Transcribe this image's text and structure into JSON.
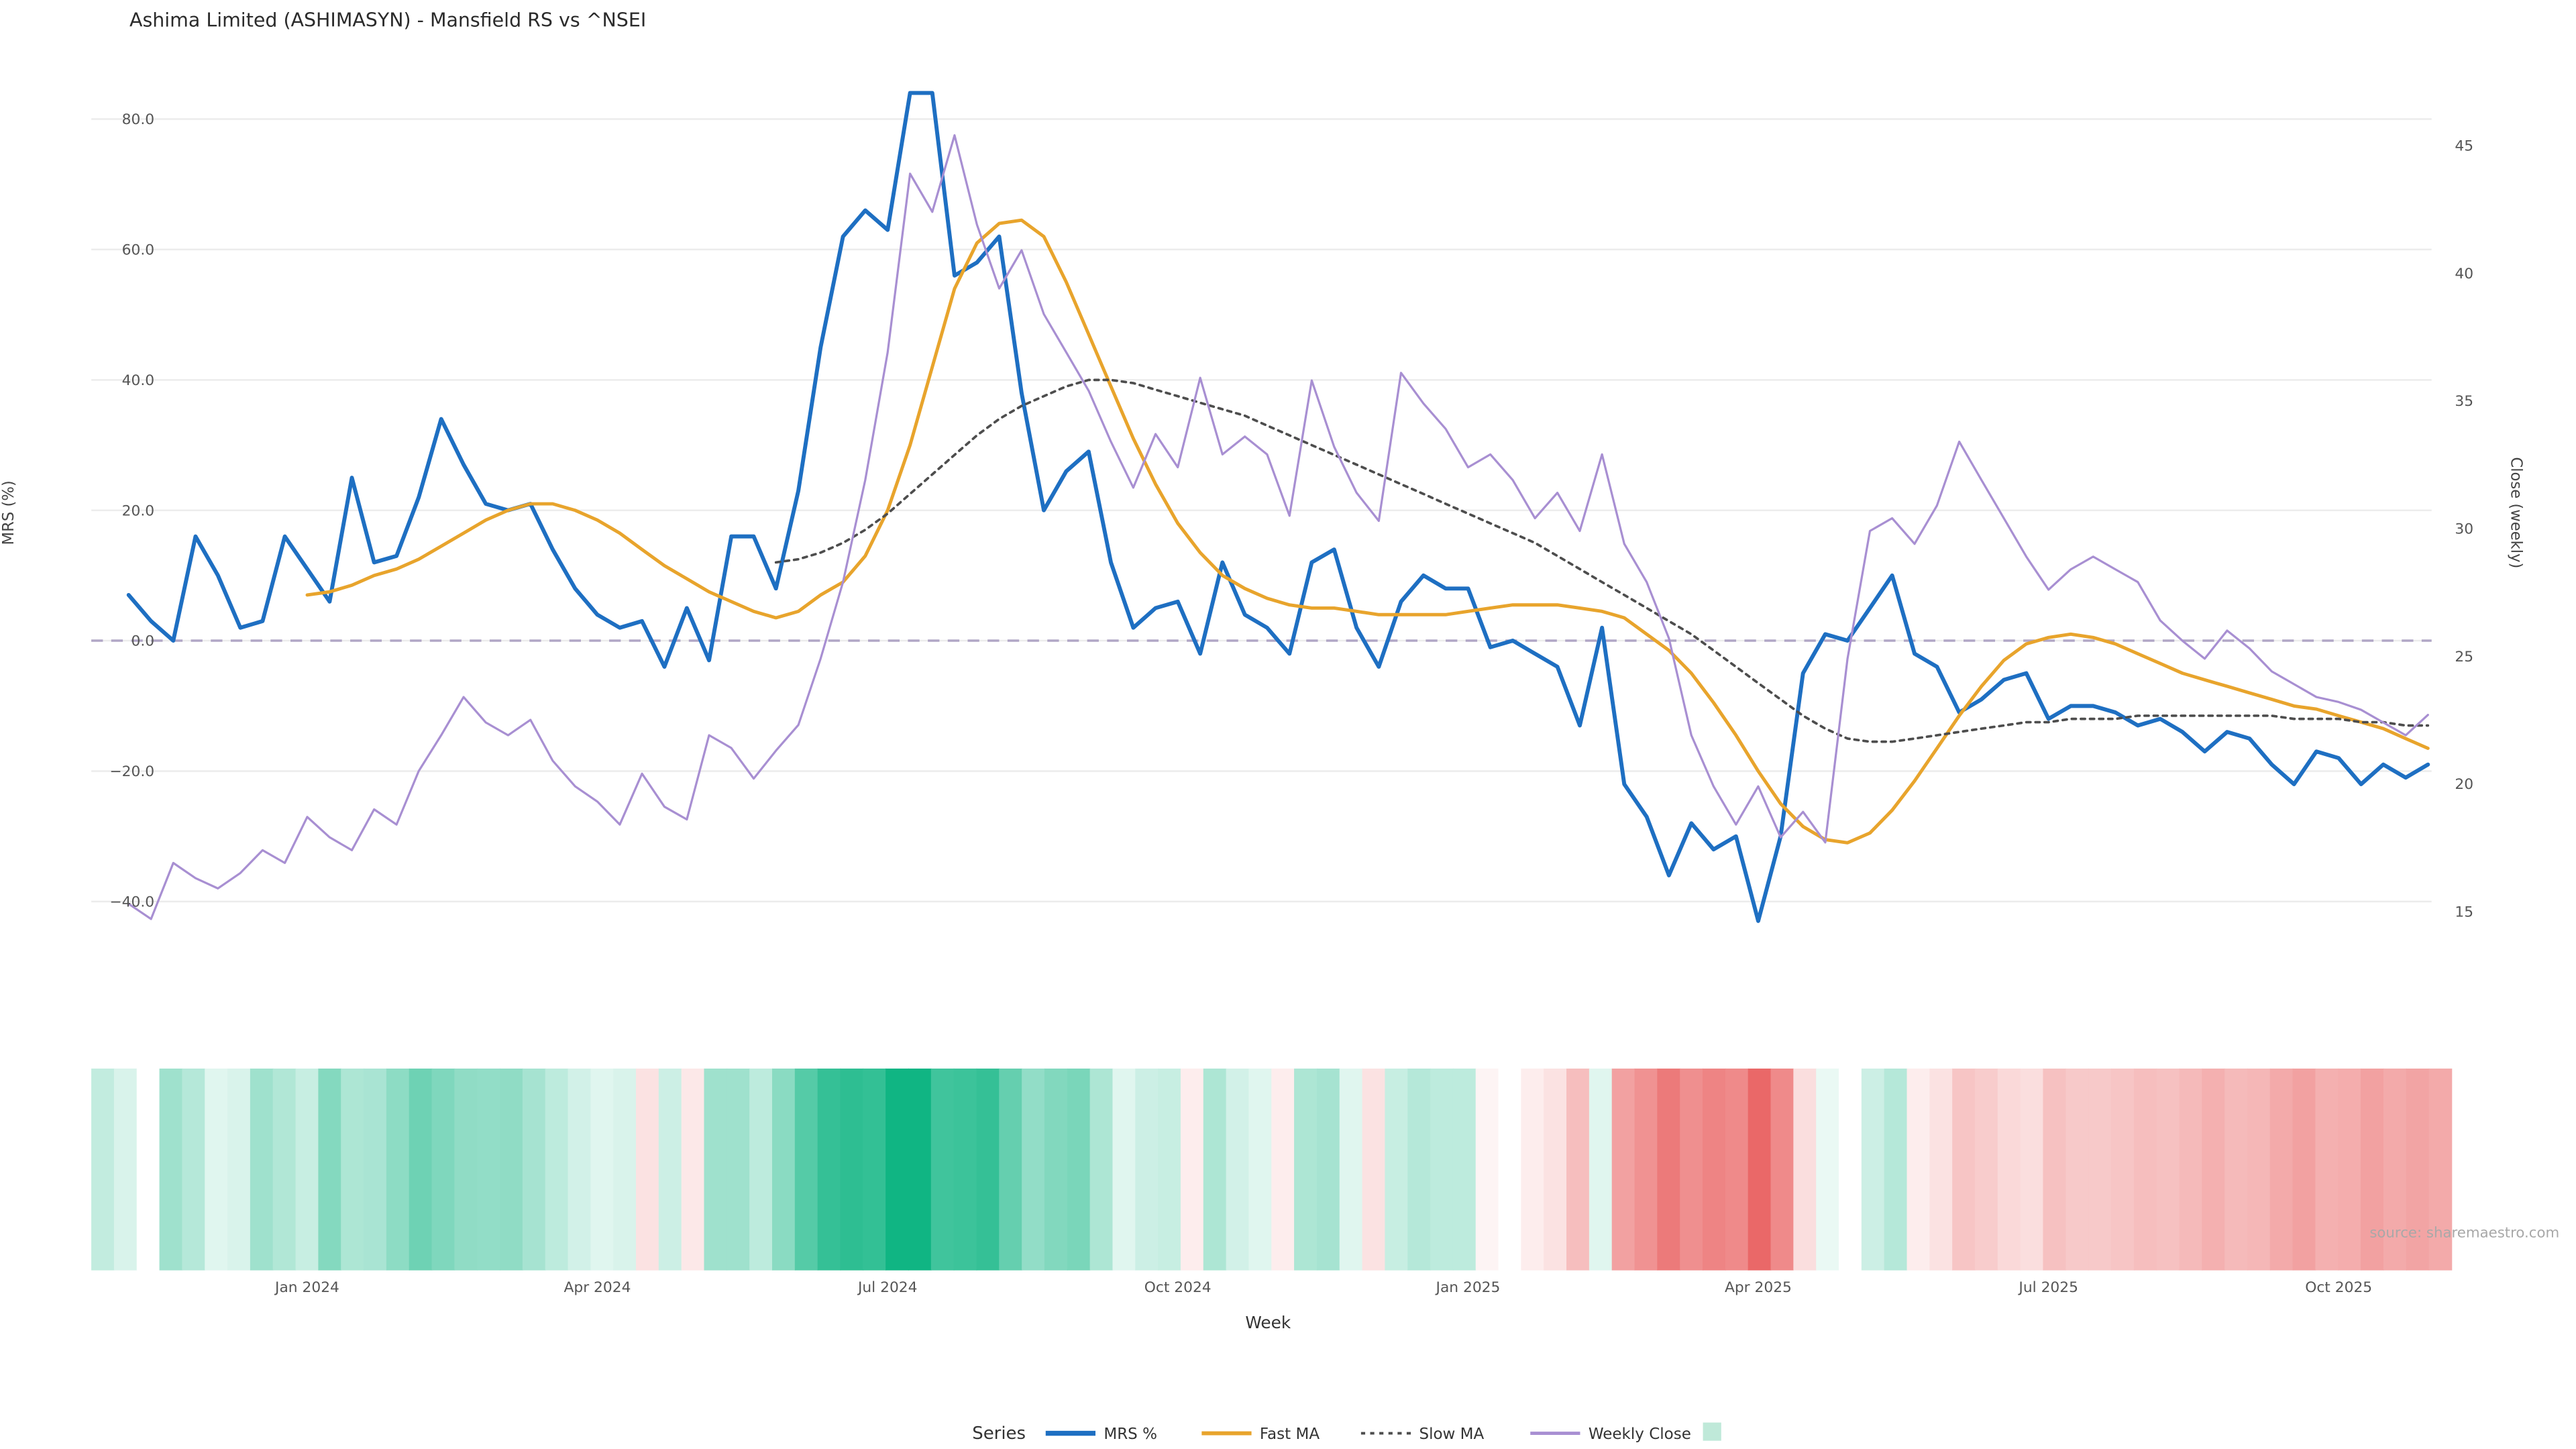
{
  "chart": {
    "title": "Ashima Limited (ASHIMASYN) - Mansfield RS vs ^NSEI",
    "xlabel": "Week",
    "ylabel_left": "MRS (%)",
    "ylabel_right": "Close (weekly)",
    "legend_title": "Series",
    "source": "source: sharemaestro.com"
  },
  "chart_data": {
    "type": "line",
    "x_axis": {
      "label": "Week",
      "n_weeks": 104,
      "tick_weeks": [
        8,
        21,
        34,
        47,
        60,
        73,
        86,
        99
      ],
      "tick_labels": [
        "Jan 2024",
        "Apr 2024",
        "Jul 2024",
        "Oct 2024",
        "Jan 2025",
        "Apr 2025",
        "Jul 2025",
        "Oct 2025"
      ]
    },
    "left_axis": {
      "label": "MRS (%)",
      "tick_values": [
        80,
        60,
        40,
        20,
        0,
        -20,
        -40
      ],
      "tick_labels": [
        "80.0",
        "60.0",
        "40.0",
        "20.0",
        "0.0",
        "−20.0",
        "−40.0"
      ],
      "range": [
        -46,
        85
      ]
    },
    "right_axis": {
      "label": "Close (weekly)",
      "tick_values": [
        45,
        40,
        35,
        30,
        25,
        20,
        15
      ],
      "tick_labels": [
        "45",
        "40",
        "35",
        "30",
        "25",
        "20",
        "15"
      ],
      "range": [
        14,
        46
      ]
    },
    "zero_line": {
      "value": 0,
      "style": "dashed",
      "color": "#b1a7c6"
    },
    "grid_color": "#ececec",
    "grid": true,
    "legend_position": "bottom",
    "series": [
      {
        "name": "MRS %",
        "axis": "left",
        "color": "#1e6fc2",
        "style": "solid",
        "values": [
          7,
          3,
          0,
          16,
          10,
          2,
          3,
          16,
          11,
          6,
          25,
          12,
          13,
          22,
          34,
          27,
          21,
          20,
          21,
          14,
          8,
          4,
          2,
          3,
          -4,
          5,
          -3,
          16,
          16,
          8,
          23,
          45,
          62,
          66,
          63,
          84,
          84,
          56,
          58,
          62,
          38,
          20,
          26,
          29,
          12,
          2,
          5,
          6,
          -2,
          12,
          4,
          2,
          -2,
          12,
          14,
          2,
          -4,
          6,
          10,
          8,
          8,
          -1,
          0,
          -2,
          -4,
          -13,
          2,
          -22,
          -27,
          -36,
          -28,
          -32,
          -30,
          -43,
          -30,
          -5,
          1,
          0,
          5,
          10,
          -2,
          -4,
          -11,
          -9,
          -6,
          -5,
          -12,
          -10,
          -10,
          -11,
          -13,
          -12,
          -14,
          -17,
          -14,
          -15,
          -19,
          -22,
          -17,
          -18,
          -22,
          -19,
          -21,
          -19
        ]
      },
      {
        "name": "Fast MA",
        "axis": "left",
        "color": "#e8a42c",
        "style": "solid",
        "values": [
          null,
          null,
          null,
          null,
          null,
          null,
          null,
          null,
          7,
          7.5,
          8.5,
          10,
          11,
          12.5,
          14.5,
          16.5,
          18.5,
          20,
          21,
          21,
          20,
          18.5,
          16.5,
          14,
          11.5,
          9.5,
          7.5,
          6,
          4.5,
          3.5,
          4.5,
          7,
          9,
          13,
          20,
          30,
          42,
          54,
          61,
          64,
          64.5,
          62,
          55,
          47,
          39,
          31,
          24,
          18,
          13.5,
          10,
          8,
          6.5,
          5.5,
          5,
          5,
          4.5,
          4,
          4,
          4,
          4,
          4.5,
          5,
          5.5,
          5.5,
          5.5,
          5,
          4.5,
          3.5,
          1,
          -1.5,
          -5,
          -9.5,
          -14.5,
          -20,
          -25,
          -28.5,
          -30.5,
          -31,
          -29.5,
          -26,
          -21.5,
          -16.5,
          -11.5,
          -7,
          -3,
          -0.5,
          0.5,
          1,
          0.5,
          -0.5,
          -2,
          -3.5,
          -5,
          -6,
          -7,
          -8,
          -9,
          -10,
          -10.5,
          -11.5,
          -12.5,
          -13.5,
          -15,
          -16.5
        ]
      },
      {
        "name": "Slow MA",
        "axis": "left",
        "color": "#4d4d4d",
        "style": "dotted",
        "values": [
          null,
          null,
          null,
          null,
          null,
          null,
          null,
          null,
          null,
          null,
          null,
          null,
          null,
          null,
          null,
          null,
          null,
          null,
          null,
          null,
          null,
          null,
          null,
          null,
          null,
          null,
          null,
          null,
          null,
          12,
          12.5,
          13.5,
          15,
          17,
          19.5,
          22.5,
          25.5,
          28.5,
          31.5,
          34,
          36,
          37.5,
          39,
          40,
          40,
          39.5,
          38.5,
          37.5,
          36.5,
          35.5,
          34.5,
          33,
          31.5,
          30,
          28.5,
          27,
          25.5,
          24,
          22.5,
          21,
          19.5,
          18,
          16.5,
          15,
          13,
          11,
          9,
          7,
          5,
          3,
          1,
          -1.5,
          -4,
          -6.5,
          -9,
          -11.5,
          -13.5,
          -15,
          -15.5,
          -15.5,
          -15,
          -14.5,
          -14,
          -13.5,
          -13,
          -12.5,
          -12.5,
          -12,
          -12,
          -12,
          -11.5,
          -11.5,
          -11.5,
          -11.5,
          -11.5,
          -11.5,
          -11.5,
          -12,
          -12,
          -12,
          -12.5,
          -12.5,
          -13,
          -13
        ]
      },
      {
        "name": "Weekly Close",
        "axis": "right",
        "color": "#a88fd2",
        "style": "solid",
        "values": [
          15.3,
          14.7,
          16.9,
          16.3,
          15.9,
          16.5,
          17.4,
          16.9,
          18.7,
          17.9,
          17.4,
          19.0,
          18.4,
          20.5,
          21.9,
          23.4,
          22.4,
          21.9,
          22.5,
          20.9,
          19.9,
          19.3,
          18.4,
          20.4,
          19.1,
          18.6,
          21.9,
          21.4,
          20.2,
          21.3,
          22.3,
          24.9,
          27.9,
          31.9,
          36.9,
          43.9,
          42.4,
          45.4,
          41.9,
          39.4,
          40.9,
          38.4,
          36.9,
          35.4,
          33.4,
          31.6,
          33.7,
          32.4,
          35.9,
          32.9,
          33.6,
          32.9,
          30.5,
          35.8,
          33.2,
          31.4,
          30.3,
          36.1,
          34.9,
          33.9,
          32.4,
          32.9,
          31.9,
          30.4,
          31.4,
          29.9,
          32.9,
          29.4,
          27.9,
          25.7,
          21.9,
          19.9,
          18.4,
          19.9,
          17.9,
          18.9,
          17.7,
          24.9,
          29.9,
          30.4,
          29.4,
          30.9,
          33.4,
          31.9,
          30.4,
          28.9,
          27.6,
          28.4,
          28.9,
          28.4,
          27.9,
          26.4,
          25.6,
          24.9,
          26.0,
          25.3,
          24.4,
          23.9,
          23.4,
          23.2,
          22.9,
          22.4,
          21.9,
          22.7
        ]
      }
    ],
    "heatmap": {
      "source_series": "MRS %",
      "max_positive": 84,
      "max_negative": -43,
      "positive_color": "#10b583",
      "negative_color": "#ea6868",
      "legend_swatch_color": "#bfe9d9",
      "legend_label": ""
    }
  }
}
